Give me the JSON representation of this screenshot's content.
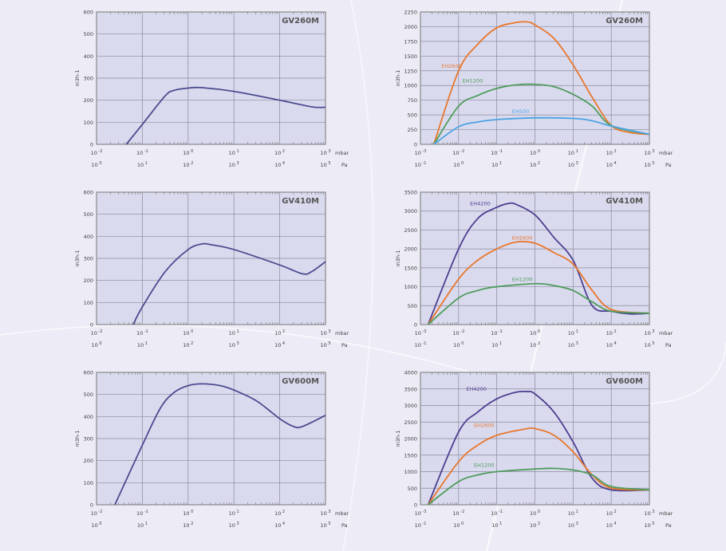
{
  "chart_data": [
    {
      "type": "line",
      "title": "GV260M",
      "ylabel": "m3h-1",
      "xscale": "log10",
      "x_units_row1": "mbar",
      "x_units_row2": "Pa",
      "xlim_log10_mbar": [
        -2,
        3
      ],
      "ylim": [
        0,
        600
      ],
      "yticks": [
        0,
        100,
        200,
        300,
        400,
        500,
        600
      ],
      "grid": true,
      "series": [
        {
          "name": "",
          "color": "#4b4c8f",
          "x_log10_mbar": [
            -1.35,
            -1,
            -0.5,
            -0.3,
            0,
            0.3,
            1,
            2,
            2.7,
            3
          ],
          "y": [
            0,
            90,
            220,
            245,
            255,
            257,
            240,
            200,
            170,
            168
          ]
        }
      ]
    },
    {
      "type": "line",
      "title": "GV260M",
      "ylabel": "m3h-1",
      "xscale": "log10",
      "x_units_row1": "mbar",
      "x_units_row2": "Pa",
      "xlim_log10_mbar": [
        -3,
        3
      ],
      "ylim": [
        0,
        2250
      ],
      "yticks": [
        0,
        250,
        500,
        750,
        1000,
        1250,
        1500,
        1750,
        2000,
        2250
      ],
      "grid": true,
      "series": [
        {
          "name": "EH2600",
          "color": "#e8772b",
          "label_at": [
            -2.45,
            1300
          ],
          "x_log10_mbar": [
            -2.65,
            -2,
            -1.5,
            -1,
            -0.5,
            -0.2,
            0,
            0.5,
            1,
            1.5,
            2,
            2.5,
            3
          ],
          "y": [
            0,
            1250,
            1700,
            1980,
            2070,
            2080,
            2030,
            1800,
            1350,
            800,
            320,
            200,
            170
          ]
        },
        {
          "name": "EH1200",
          "color": "#4f9c5c",
          "label_at": [
            -1.9,
            1050
          ],
          "x_log10_mbar": [
            -2.65,
            -2,
            -1.5,
            -1,
            -0.5,
            0,
            0.5,
            1,
            1.5,
            2,
            3
          ],
          "y": [
            0,
            650,
            830,
            950,
            1010,
            1020,
            980,
            850,
            650,
            320,
            170
          ]
        },
        {
          "name": "EH500",
          "color": "#4aa3e2",
          "label_at": [
            -0.6,
            530
          ],
          "x_log10_mbar": [
            -2.65,
            -2,
            -1.5,
            -1,
            0,
            1,
            1.5,
            2,
            3
          ],
          "y": [
            0,
            300,
            380,
            420,
            450,
            440,
            400,
            310,
            170
          ]
        }
      ]
    },
    {
      "type": "line",
      "title": "GV410M",
      "ylabel": "m3h-1",
      "xscale": "log10",
      "x_units_row1": "mbar",
      "x_units_row2": "Pa",
      "xlim_log10_mbar": [
        -2,
        3
      ],
      "ylim": [
        0,
        600
      ],
      "yticks": [
        0,
        100,
        200,
        300,
        400,
        500,
        600
      ],
      "grid": true,
      "series": [
        {
          "name": "",
          "color": "#4b4c8f",
          "x_log10_mbar": [
            -1.2,
            -1,
            -0.5,
            0,
            0.3,
            0.5,
            1,
            2,
            2.5,
            2.7,
            3
          ],
          "y": [
            0,
            80,
            240,
            340,
            365,
            362,
            340,
            270,
            230,
            240,
            285
          ]
        }
      ]
    },
    {
      "type": "line",
      "title": "GV410M",
      "ylabel": "m3h-1",
      "xscale": "log10",
      "x_units_row1": "mbar",
      "x_units_row2": "Pa",
      "xlim_log10_mbar": [
        -3,
        3
      ],
      "ylim": [
        0,
        3500
      ],
      "yticks": [
        0,
        500,
        1000,
        1500,
        2000,
        2500,
        3000,
        3500
      ],
      "grid": true,
      "series": [
        {
          "name": "EH4200",
          "color": "#4b3f8f",
          "label_at": [
            -1.7,
            3150
          ],
          "x_log10_mbar": [
            -2.8,
            -2,
            -1.5,
            -1,
            -0.7,
            -0.5,
            0,
            0.5,
            1,
            1.5,
            2,
            2.5,
            3
          ],
          "y": [
            0,
            2000,
            2800,
            3100,
            3200,
            3180,
            2900,
            2300,
            1700,
            500,
            350,
            280,
            300
          ]
        },
        {
          "name": "EH2600",
          "color": "#e8772b",
          "label_at": [
            -0.6,
            2250
          ],
          "x_log10_mbar": [
            -2.8,
            -2,
            -1.5,
            -1,
            -0.5,
            0,
            0.5,
            1,
            1.5,
            2,
            3
          ],
          "y": [
            0,
            1200,
            1700,
            2000,
            2180,
            2150,
            1900,
            1600,
            900,
            400,
            300
          ]
        },
        {
          "name": "EH1200",
          "color": "#4f9c5c",
          "label_at": [
            -0.6,
            1150
          ],
          "x_log10_mbar": [
            -2.8,
            -2,
            -1.5,
            -1,
            0,
            0.5,
            1,
            1.5,
            2,
            3
          ],
          "y": [
            0,
            700,
            900,
            1000,
            1080,
            1030,
            900,
            600,
            350,
            300
          ]
        }
      ]
    },
    {
      "type": "line",
      "title": "GV600M",
      "ylabel": "m3h-1",
      "xscale": "log10",
      "x_units_row1": "mbar",
      "x_units_row2": "Pa",
      "xlim_log10_mbar": [
        -2,
        3
      ],
      "ylim": [
        0,
        600
      ],
      "yticks": [
        0,
        100,
        200,
        300,
        400,
        500,
        600
      ],
      "grid": true,
      "series": [
        {
          "name": "",
          "color": "#4b4c8f",
          "x_log10_mbar": [
            -1.6,
            -1,
            -0.6,
            -0.3,
            0,
            0.3,
            0.7,
            1,
            1.5,
            2,
            2.3,
            2.5,
            3
          ],
          "y": [
            0,
            270,
            440,
            510,
            540,
            548,
            540,
            520,
            470,
            390,
            355,
            355,
            405
          ]
        }
      ]
    },
    {
      "type": "line",
      "title": "GV600M",
      "ylabel": "m3h-1",
      "xscale": "log10",
      "x_units_row1": "mbar",
      "x_units_row2": "Pa",
      "xlim_log10_mbar": [
        -3,
        3
      ],
      "ylim": [
        0,
        4000
      ],
      "yticks": [
        0,
        500,
        1000,
        1500,
        2000,
        2500,
        3000,
        3500,
        4000
      ],
      "grid": true,
      "series": [
        {
          "name": "EH4200",
          "color": "#4b3f8f",
          "label_at": [
            -1.8,
            3450
          ],
          "x_log10_mbar": [
            -2.8,
            -2,
            -1.5,
            -1,
            -0.5,
            -0.2,
            0,
            0.5,
            1,
            1.5,
            2,
            3
          ],
          "y": [
            0,
            2200,
            2800,
            3200,
            3400,
            3420,
            3350,
            2800,
            1900,
            800,
            450,
            450
          ]
        },
        {
          "name": "EH2600",
          "color": "#e8772b",
          "label_at": [
            -1.6,
            2350
          ],
          "x_log10_mbar": [
            -2.8,
            -2,
            -1.5,
            -1,
            -0.3,
            0,
            0.5,
            1,
            1.5,
            2,
            3
          ],
          "y": [
            0,
            1300,
            1800,
            2100,
            2280,
            2300,
            2100,
            1600,
            900,
            500,
            450
          ]
        },
        {
          "name": "EH1200",
          "color": "#4f9c5c",
          "label_at": [
            -1.6,
            1150
          ],
          "x_log10_mbar": [
            -2.8,
            -2,
            -1.5,
            -1,
            0,
            0.5,
            1,
            1.5,
            2,
            3
          ],
          "y": [
            0,
            700,
            900,
            1000,
            1080,
            1100,
            1050,
            900,
            550,
            450
          ]
        }
      ]
    }
  ]
}
